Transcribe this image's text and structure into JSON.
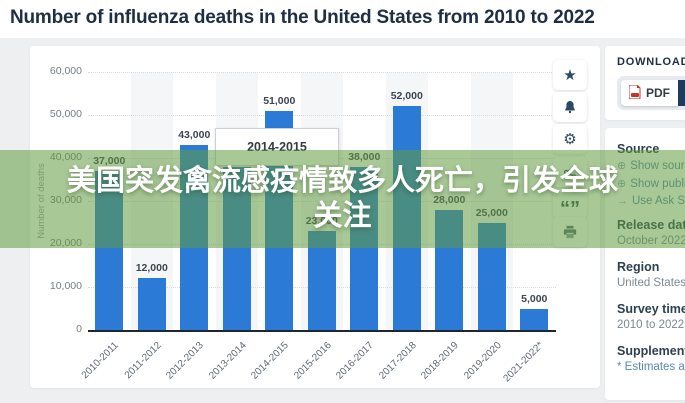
{
  "page": {
    "title": "Number of influenza deaths in the United States from 2010 to 2022"
  },
  "overlay": {
    "line1": "美国突发禽流感疫情致多人死亡，引发全球",
    "line2": "关注"
  },
  "tooltip": {
    "label": "2014-2015"
  },
  "toolbar": {
    "icons": [
      "favorite-star",
      "notification-bell",
      "settings-gear",
      "share",
      "cite",
      "print"
    ]
  },
  "download": {
    "header": "DOWNLOAD",
    "pdf_label": "PDF",
    "plus_label": "+"
  },
  "sidebar": {
    "source_label": "Source",
    "links": [
      {
        "icon": "circle-plus",
        "label": "Show sources information"
      },
      {
        "icon": "circle-plus",
        "label": "Show publisher information"
      },
      {
        "icon": "arrow-right",
        "label": "Use Ask Statista Research Service"
      }
    ],
    "meta": [
      {
        "label": "Release date",
        "value": "October 2022"
      },
      {
        "label": "Region",
        "value": "United States"
      },
      {
        "label": "Survey time period",
        "value": "2010 to 2022"
      },
      {
        "label": "Supplementary notes",
        "value": "* Estimates are"
      }
    ]
  },
  "chart_data": {
    "type": "bar",
    "title": "Number of influenza deaths in the United States from 2010 to 2022",
    "xlabel": "",
    "ylabel": "Number of deaths",
    "categories": [
      "2010-2011",
      "2011-2012",
      "2012-2013",
      "2013-2014",
      "2014-2015",
      "2015-2016",
      "2016-2017",
      "2017-2018",
      "2018-2019",
      "2019-2020",
      "2021-2022*"
    ],
    "values": [
      37000,
      12000,
      43000,
      38000,
      51000,
      23000,
      38000,
      52000,
      28000,
      25000,
      5000
    ],
    "value_labels": [
      "37,000",
      "12,000",
      "43,000",
      "38,000",
      "51,000",
      "23,000",
      "38,000",
      "52,000",
      "28,000",
      "25,000",
      "5,000"
    ],
    "ylim": [
      0,
      60000
    ],
    "yticks": [
      0,
      10000,
      20000,
      30000,
      40000,
      50000,
      60000
    ],
    "ytick_labels": [
      "0",
      "10,000",
      "20,000",
      "30,000",
      "40,000",
      "50,000",
      "60,000"
    ],
    "grid": true,
    "legend": false,
    "bar_color": "#2b7ad6"
  },
  "colors": {
    "bar": "#2b7ad6",
    "overlay_green": "rgba(97,155,64,0.55)",
    "navy": "#1d3a5f",
    "link": "#5b87ad",
    "page_bg": "#edeff1"
  }
}
